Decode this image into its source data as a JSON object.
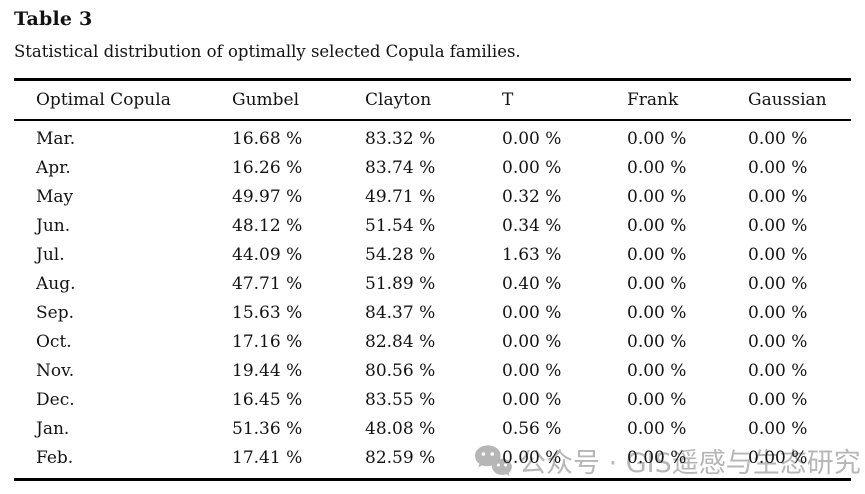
{
  "title": "Table 3",
  "caption": "Statistical distribution of optimally selected Copula families.",
  "table": {
    "columns": [
      "Optimal Copula",
      "Gumbel",
      "Clayton",
      "T",
      "Frank",
      "Gaussian"
    ],
    "rows": [
      {
        "month": "Mar.",
        "values": [
          "16.68 %",
          "83.32 %",
          "0.00 %",
          "0.00 %",
          "0.00 %"
        ]
      },
      {
        "month": "Apr.",
        "values": [
          "16.26 %",
          "83.74 %",
          "0.00 %",
          "0.00 %",
          "0.00 %"
        ]
      },
      {
        "month": "May",
        "values": [
          "49.97 %",
          "49.71 %",
          "0.32 %",
          "0.00 %",
          "0.00 %"
        ]
      },
      {
        "month": "Jun.",
        "values": [
          "48.12 %",
          "51.54 %",
          "0.34 %",
          "0.00 %",
          "0.00 %"
        ]
      },
      {
        "month": "Jul.",
        "values": [
          "44.09 %",
          "54.28 %",
          "1.63 %",
          "0.00 %",
          "0.00 %"
        ]
      },
      {
        "month": "Aug.",
        "values": [
          "47.71 %",
          "51.89 %",
          "0.40 %",
          "0.00 %",
          "0.00 %"
        ]
      },
      {
        "month": "Sep.",
        "values": [
          "15.63 %",
          "84.37 %",
          "0.00 %",
          "0.00 %",
          "0.00 %"
        ]
      },
      {
        "month": "Oct.",
        "values": [
          "17.16 %",
          "82.84 %",
          "0.00 %",
          "0.00 %",
          "0.00 %"
        ]
      },
      {
        "month": "Nov.",
        "values": [
          "19.44 %",
          "80.56 %",
          "0.00 %",
          "0.00 %",
          "0.00 %"
        ]
      },
      {
        "month": "Dec.",
        "values": [
          "16.45 %",
          "83.55 %",
          "0.00 %",
          "0.00 %",
          "0.00 %"
        ]
      },
      {
        "month": "Jan.",
        "values": [
          "51.36 %",
          "48.08 %",
          "0.56 %",
          "0.00 %",
          "0.00 %"
        ]
      },
      {
        "month": "Feb.",
        "values": [
          "17.41 %",
          "82.59 %",
          "0.00 %",
          "0.00 %",
          "0.00 %"
        ]
      }
    ]
  },
  "watermark": {
    "icon": "wechat-icon",
    "text": "公众号 · GIS遥感与生态研究"
  },
  "colors": {
    "text": "#121212",
    "rule": "#000000",
    "watermark": "#b6b6b6",
    "background": "#ffffff"
  }
}
